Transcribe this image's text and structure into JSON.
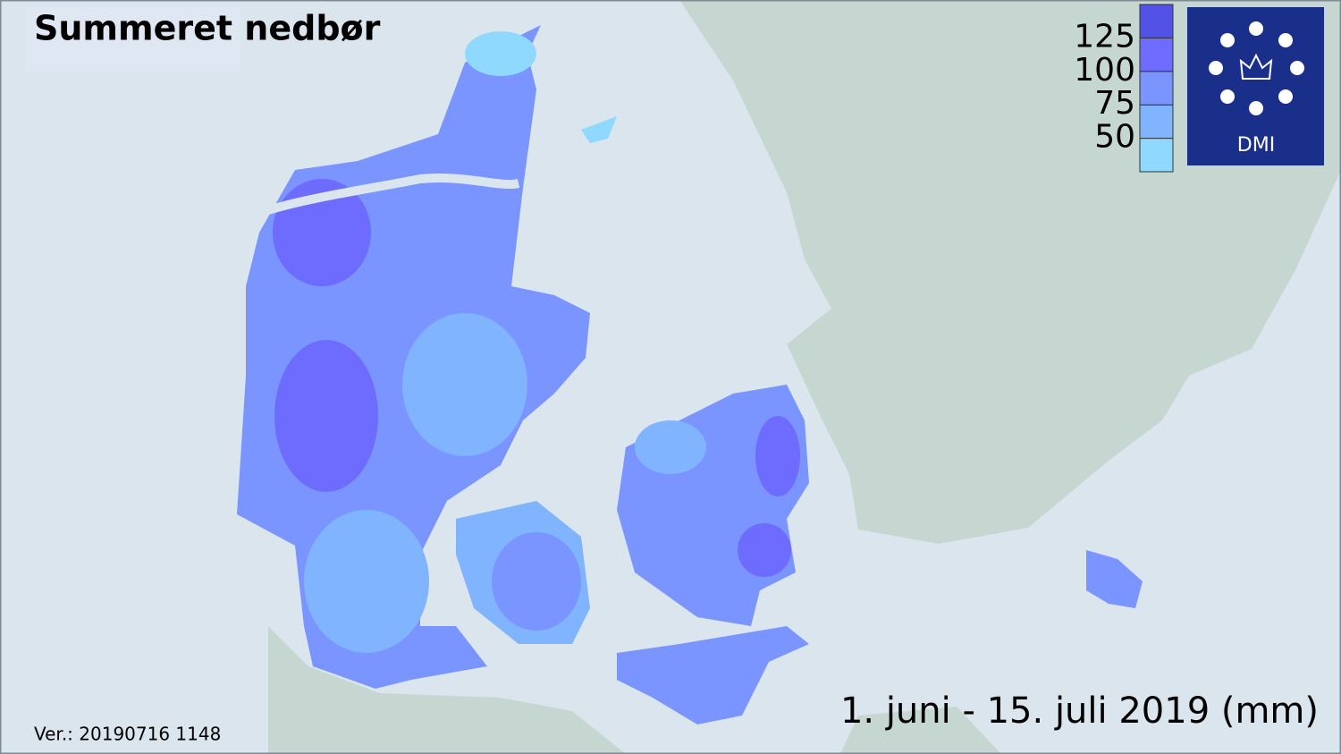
{
  "title": "Summeret nedbør",
  "period": "1. juni - 15. juli 2019 (mm)",
  "version": "Ver.: 20190716 1148",
  "logo": "DMI",
  "legend": {
    "ticks": [
      50,
      75,
      100,
      125
    ],
    "colors": [
      "#8fd8ff",
      "#80b4ff",
      "#7a95ff",
      "#6d6cff",
      "#5252e6"
    ]
  }
}
